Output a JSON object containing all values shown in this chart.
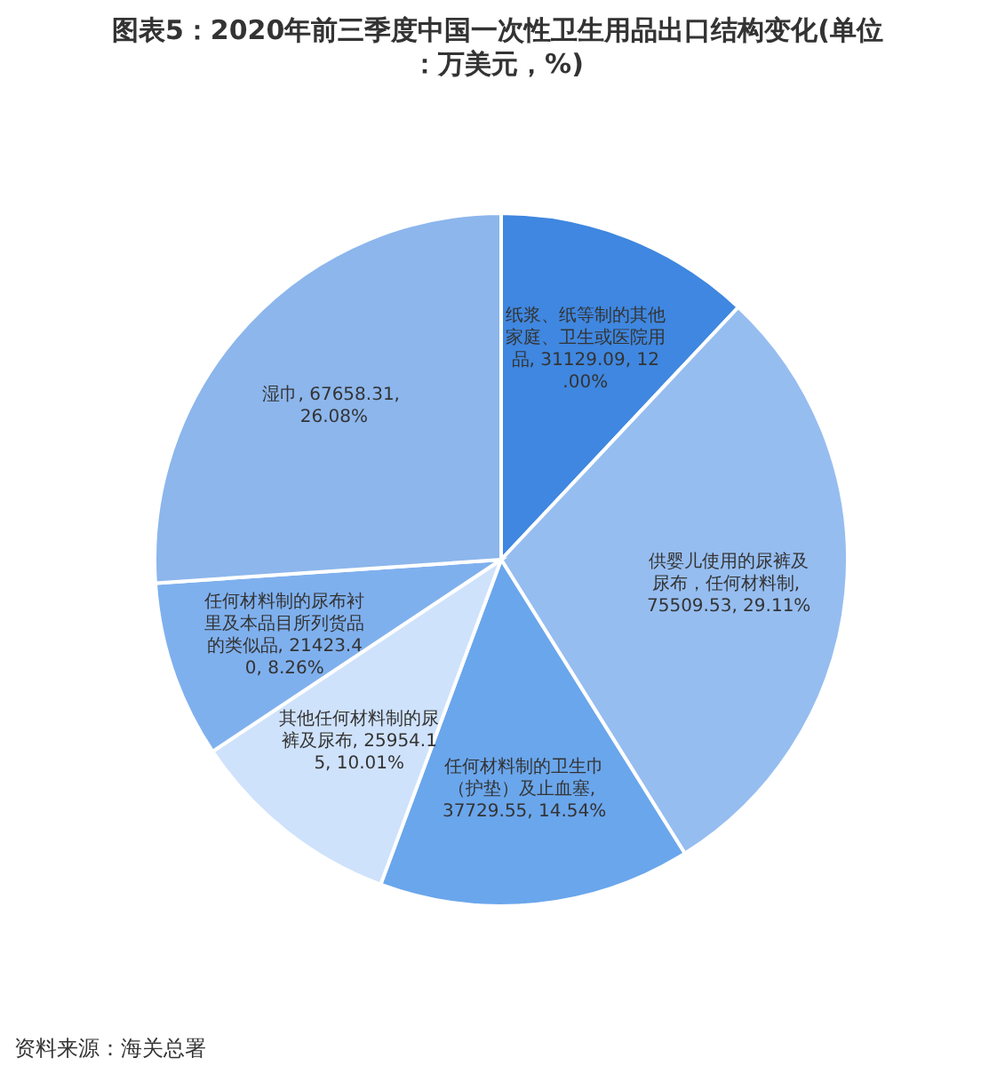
{
  "chart_data": {
    "type": "pie",
    "title": "图表5：2020年前三季度中国一次性卫生用品出口结构变化(单位：万美元，%)",
    "categories": [
      "纸浆、纸等制的其他家庭、卫生或医院用品",
      "供婴儿使用的尿裤及尿布，任何材料制",
      "任何材料制的卫生巾（护垫）及止血塞",
      "其他任何材料制的尿裤及尿布",
      "任何材料制的尿布衬里及本品目所列货品的类似品",
      "湿巾"
    ],
    "values": [
      31129.09,
      75509.53,
      37729.55,
      25954.15,
      21423.4,
      67658.31
    ],
    "value_labels": [
      ", 31129.09, 12.00%",
      ", 75509.53, 29.11%",
      ", 37729.55, 14.54%",
      ", 25954.15, 10.01%",
      ", 21423.40, 8.26%",
      ", 67658.31, 26.08%"
    ],
    "colors": [
      "#3f87e0",
      "#96bdf0",
      "#6aa6ec",
      "#cfe2fb",
      "#7fb0ee",
      "#8cb6ec"
    ],
    "annotations": [
      "资料来源：海关总署"
    ]
  }
}
